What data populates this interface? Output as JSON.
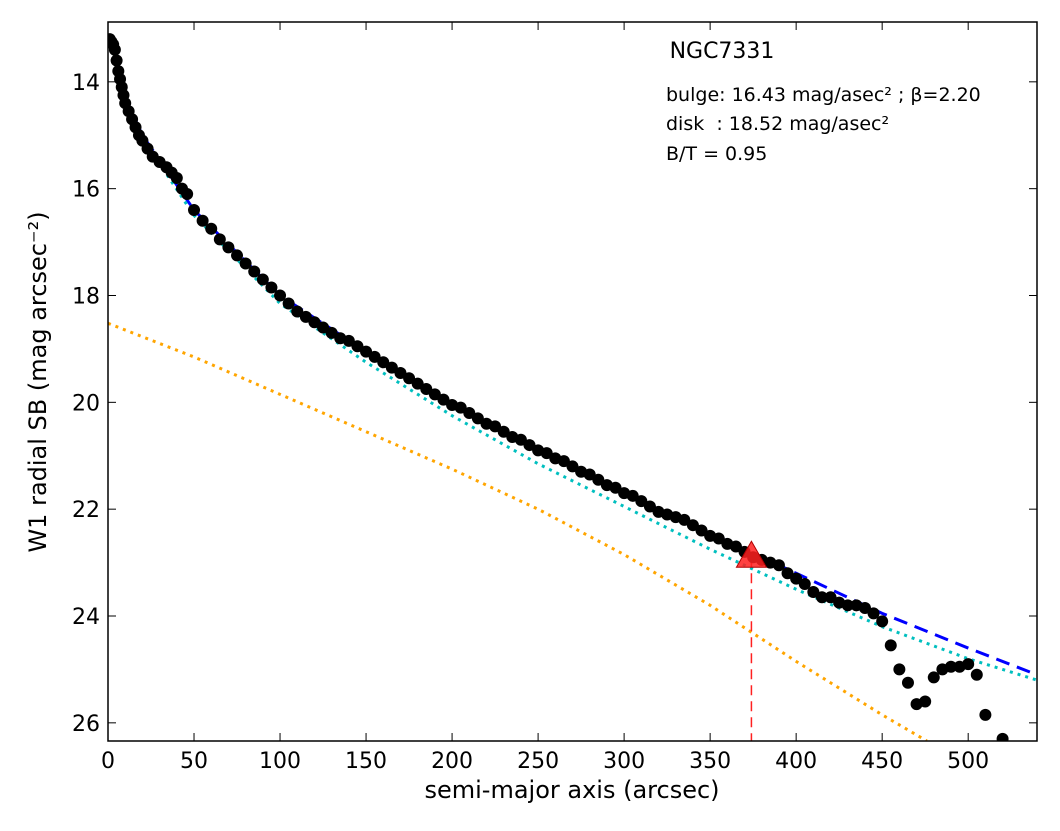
{
  "chart_data": {
    "type": "scatter",
    "title": "NGC7331",
    "annotations": [
      "bulge: 16.43 mag/asec² ; β=2.20",
      "disk  : 18.52 mag/asec²",
      "B/T = 0.95"
    ],
    "x_label": "semi-major axis (arcsec)",
    "y_label": "W1 radial SB (mag arcsec⁻²)",
    "xlim": [
      0,
      540
    ],
    "xticks": [
      0,
      50,
      100,
      150,
      200,
      250,
      300,
      350,
      400,
      450,
      500
    ],
    "ylim": [
      12.88,
      26.34
    ],
    "yticks": [
      14,
      16,
      18,
      20,
      22,
      24,
      26
    ],
    "invert_y": true,
    "points": {
      "color": "#000000",
      "x": [
        1,
        2,
        3,
        4,
        5,
        6,
        7,
        8,
        9,
        10,
        12,
        14,
        16,
        18,
        20,
        23,
        26,
        30,
        34,
        37,
        40,
        43,
        46,
        50,
        55,
        60,
        65,
        70,
        75,
        80,
        85,
        90,
        95,
        100,
        105,
        110,
        115,
        120,
        125,
        130,
        135,
        140,
        145,
        150,
        155,
        160,
        165,
        170,
        175,
        180,
        185,
        190,
        195,
        200,
        205,
        210,
        215,
        220,
        225,
        230,
        235,
        240,
        245,
        250,
        255,
        260,
        265,
        270,
        275,
        280,
        285,
        290,
        295,
        300,
        305,
        310,
        315,
        320,
        325,
        330,
        335,
        340,
        345,
        350,
        355,
        360,
        365,
        370,
        375,
        380,
        385,
        390,
        395,
        400,
        405,
        410,
        415,
        420,
        425,
        430,
        435,
        440,
        445,
        450,
        455,
        460,
        465,
        470,
        475,
        480,
        485,
        490,
        495,
        500,
        505,
        510,
        520
      ],
      "y": [
        13.2,
        13.25,
        13.3,
        13.4,
        13.6,
        13.8,
        13.95,
        14.1,
        14.25,
        14.4,
        14.55,
        14.7,
        14.85,
        15.0,
        15.1,
        15.25,
        15.4,
        15.5,
        15.6,
        15.7,
        15.8,
        16.0,
        16.1,
        16.4,
        16.6,
        16.75,
        16.95,
        17.1,
        17.25,
        17.4,
        17.55,
        17.7,
        17.85,
        18.0,
        18.15,
        18.3,
        18.4,
        18.5,
        18.6,
        18.7,
        18.8,
        18.85,
        18.95,
        19.05,
        19.15,
        19.25,
        19.35,
        19.45,
        19.55,
        19.65,
        19.75,
        19.85,
        19.95,
        20.05,
        20.1,
        20.2,
        20.3,
        20.4,
        20.45,
        20.55,
        20.65,
        20.7,
        20.8,
        20.9,
        20.95,
        21.05,
        21.1,
        21.2,
        21.3,
        21.35,
        21.45,
        21.55,
        21.6,
        21.7,
        21.75,
        21.85,
        21.95,
        22.05,
        22.1,
        22.15,
        22.2,
        22.3,
        22.4,
        22.5,
        22.55,
        22.65,
        22.7,
        22.8,
        22.9,
        22.95,
        23.0,
        23.05,
        23.2,
        23.3,
        23.4,
        23.55,
        23.65,
        23.65,
        23.75,
        23.8,
        23.8,
        23.85,
        23.95,
        24.1,
        24.55,
        25.0,
        25.25,
        25.65,
        25.6,
        25.15,
        25.0,
        24.95,
        24.95,
        24.9,
        25.1,
        25.85,
        26.3
      ]
    },
    "lines": [
      {
        "color": "#0000ff",
        "style": "dashed",
        "x": [
          0,
          5,
          10,
          20,
          50,
          100,
          150,
          200,
          250,
          300,
          350,
          400,
          450,
          500,
          540
        ],
        "y": [
          13.15,
          13.65,
          14.3,
          15.0,
          16.4,
          18.0,
          19.05,
          20.05,
          20.9,
          21.7,
          22.45,
          23.2,
          23.95,
          24.6,
          25.1
        ]
      },
      {
        "color": "#00bfbf",
        "style": "dotted",
        "x": [
          0,
          5,
          10,
          20,
          50,
          100,
          150,
          200,
          250,
          300,
          350,
          400,
          450,
          500,
          540
        ],
        "y": [
          13.15,
          13.7,
          14.35,
          15.05,
          16.5,
          18.15,
          19.25,
          20.25,
          21.15,
          21.95,
          22.75,
          23.5,
          24.2,
          24.8,
          25.2
        ]
      },
      {
        "color": "#ffa500",
        "style": "dotted",
        "x": [
          0,
          50,
          100,
          150,
          200,
          250,
          300,
          350,
          400,
          450,
          476
        ],
        "y": [
          18.52,
          19.15,
          19.85,
          20.55,
          21.25,
          22.0,
          22.85,
          23.8,
          24.85,
          25.85,
          26.34
        ]
      }
    ],
    "marker_point": {
      "x": 374,
      "y": 22.9,
      "color": "#ff2020"
    }
  }
}
